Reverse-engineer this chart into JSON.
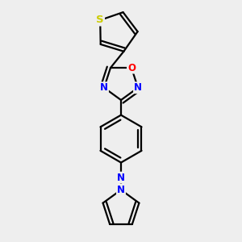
{
  "background_color": "#eeeeee",
  "bond_color": "#000000",
  "line_width": 1.6,
  "atom_colors": {
    "S": "#cccc00",
    "O": "#ff0000",
    "N": "#0000ff",
    "C": "#000000"
  },
  "font_size": 8.5,
  "fig_width": 3.0,
  "fig_height": 3.0,
  "dpi": 100,
  "xlim": [
    -1.2,
    1.2
  ],
  "ylim": [
    -3.2,
    2.8
  ]
}
